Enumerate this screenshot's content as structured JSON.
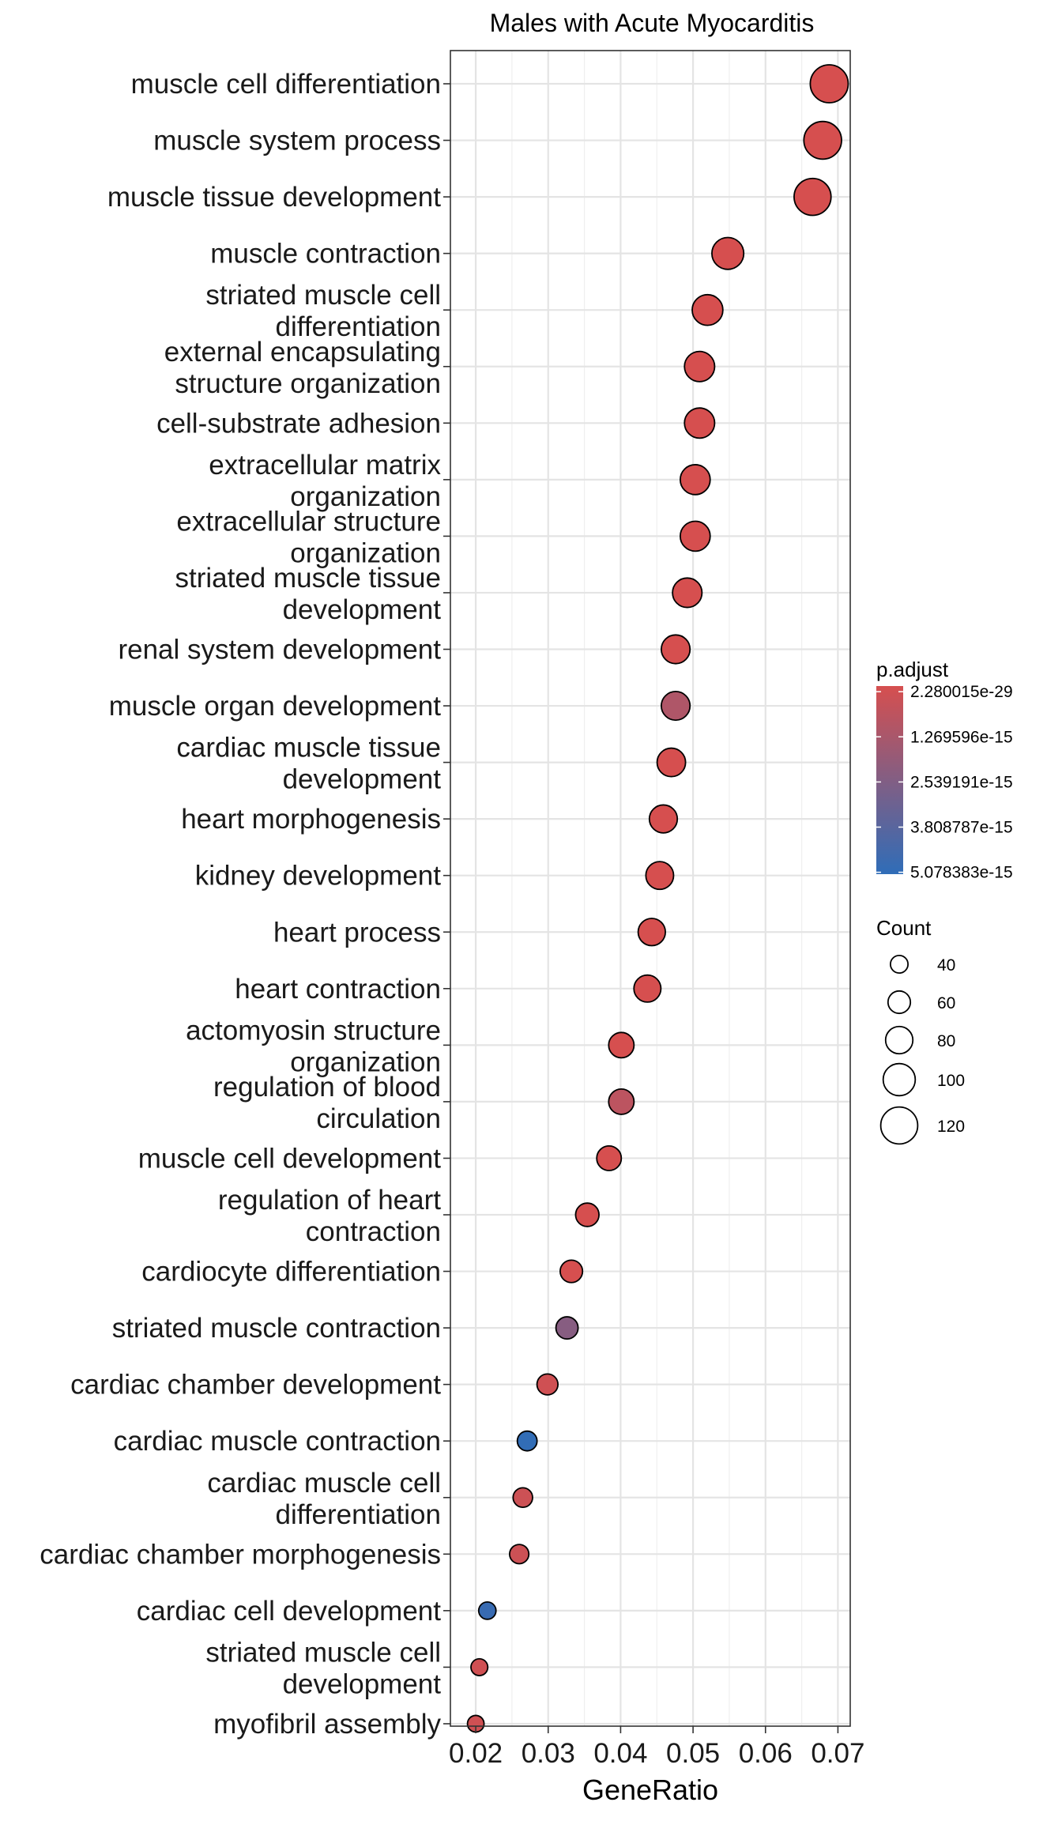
{
  "chart_data": {
    "type": "scatter",
    "title": "Males with Acute Myocarditis",
    "xlabel": "GeneRatio",
    "ylabel": "",
    "xlim": [
      0.0165,
      0.0717
    ],
    "x_ticks": [
      "0.02",
      "0.03",
      "0.04",
      "0.05",
      "0.06",
      "0.07"
    ],
    "x_tick_values": [
      0.02,
      0.03,
      0.04,
      0.05,
      0.06,
      0.07
    ],
    "grid": true,
    "terms": [
      {
        "label": [
          "muscle cell differentiation"
        ],
        "gene_ratio": 0.0688,
        "count": 124,
        "p_adjust": 2.3e-29
      },
      {
        "label": [
          "muscle system process"
        ],
        "gene_ratio": 0.0679,
        "count": 123,
        "p_adjust": 1e-28
      },
      {
        "label": [
          "muscle tissue development"
        ],
        "gene_ratio": 0.0665,
        "count": 120,
        "p_adjust": 1e-27
      },
      {
        "label": [
          "muscle contraction"
        ],
        "gene_ratio": 0.0548,
        "count": 99,
        "p_adjust": 1e-25
      },
      {
        "label": [
          "striated muscle cell",
          "differentiation"
        ],
        "gene_ratio": 0.052,
        "count": 94,
        "p_adjust": 1e-24
      },
      {
        "label": [
          "external encapsulating",
          "structure organization"
        ],
        "gene_ratio": 0.0509,
        "count": 92,
        "p_adjust": 1e-23
      },
      {
        "label": [
          "cell-substrate adhesion"
        ],
        "gene_ratio": 0.0509,
        "count": 92,
        "p_adjust": 1e-23
      },
      {
        "label": [
          "extracellular matrix",
          "organization"
        ],
        "gene_ratio": 0.0503,
        "count": 91,
        "p_adjust": 1e-23
      },
      {
        "label": [
          "extracellular structure",
          "organization"
        ],
        "gene_ratio": 0.0503,
        "count": 91,
        "p_adjust": 1e-23
      },
      {
        "label": [
          "striated muscle tissue",
          "development"
        ],
        "gene_ratio": 0.0492,
        "count": 89,
        "p_adjust": 1e-22
      },
      {
        "label": [
          "renal system development"
        ],
        "gene_ratio": 0.0476,
        "count": 86,
        "p_adjust": 1e-20
      },
      {
        "label": [
          "muscle organ development"
        ],
        "gene_ratio": 0.0476,
        "count": 86,
        "p_adjust": 1.2e-15
      },
      {
        "label": [
          "cardiac muscle tissue",
          "development"
        ],
        "gene_ratio": 0.047,
        "count": 85,
        "p_adjust": 1e-20
      },
      {
        "label": [
          "heart morphogenesis"
        ],
        "gene_ratio": 0.0459,
        "count": 83,
        "p_adjust": 1e-19
      },
      {
        "label": [
          "kidney development"
        ],
        "gene_ratio": 0.0454,
        "count": 82,
        "p_adjust": 1e-19
      },
      {
        "label": [
          "heart process"
        ],
        "gene_ratio": 0.0443,
        "count": 80,
        "p_adjust": 1e-18
      },
      {
        "label": [
          "heart contraction"
        ],
        "gene_ratio": 0.0437,
        "count": 79,
        "p_adjust": 1e-18
      },
      {
        "label": [
          "actomyosin structure",
          "organization"
        ],
        "gene_ratio": 0.0401,
        "count": 72,
        "p_adjust": 1e-17
      },
      {
        "label": [
          "regulation of blood",
          "circulation"
        ],
        "gene_ratio": 0.0401,
        "count": 72,
        "p_adjust": 8e-16
      },
      {
        "label": [
          "muscle cell development"
        ],
        "gene_ratio": 0.0384,
        "count": 69,
        "p_adjust": 1e-17
      },
      {
        "label": [
          "regulation of heart",
          "contraction"
        ],
        "gene_ratio": 0.0354,
        "count": 64,
        "p_adjust": 1e-17
      },
      {
        "label": [
          "cardiocyte differentiation"
        ],
        "gene_ratio": 0.0332,
        "count": 60,
        "p_adjust": 1e-17
      },
      {
        "label": [
          "striated muscle contraction"
        ],
        "gene_ratio": 0.0326,
        "count": 59,
        "p_adjust": 2.4e-15
      },
      {
        "label": [
          "cardiac chamber development"
        ],
        "gene_ratio": 0.0299,
        "count": 54,
        "p_adjust": 2e-16
      },
      {
        "label": [
          "cardiac muscle contraction"
        ],
        "gene_ratio": 0.0271,
        "count": 49,
        "p_adjust": 5e-15
      },
      {
        "label": [
          "cardiac muscle cell",
          "differentiation"
        ],
        "gene_ratio": 0.0265,
        "count": 48,
        "p_adjust": 3e-16
      },
      {
        "label": [
          "cardiac chamber morphogenesis"
        ],
        "gene_ratio": 0.026,
        "count": 47,
        "p_adjust": 3e-16
      },
      {
        "label": [
          "cardiac cell development"
        ],
        "gene_ratio": 0.0216,
        "count": 39,
        "p_adjust": 4.8e-15
      },
      {
        "label": [
          "striated muscle cell",
          "development"
        ],
        "gene_ratio": 0.0205,
        "count": 37,
        "p_adjust": 2e-16
      },
      {
        "label": [
          "myofibril assembly"
        ],
        "gene_ratio": 0.02,
        "count": 36,
        "p_adjust": 2e-16
      }
    ],
    "legend": {
      "placement": "right",
      "color": {
        "title": "p.adjust",
        "labels": [
          "2.280015e-29",
          "1.269596e-15",
          "2.539191e-15",
          "3.808787e-15",
          "5.078383e-15"
        ],
        "low_color": "#d64f4f",
        "high_color": "#2f6db8",
        "range": [
          2.280015e-29,
          5.078383e-15
        ]
      },
      "size": {
        "title": "Count",
        "labels": [
          "40",
          "60",
          "80",
          "100",
          "120"
        ],
        "values": [
          40,
          60,
          80,
          100,
          120
        ]
      }
    }
  }
}
